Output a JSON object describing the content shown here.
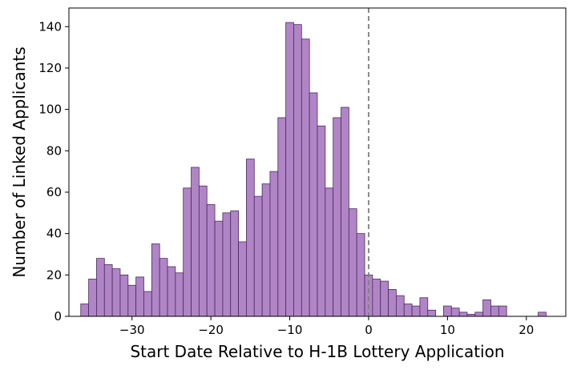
{
  "chart_data": {
    "type": "bar",
    "xlabel": "Start Date Relative to H-1B Lottery Application",
    "ylabel": "Number of Linked Applicants",
    "xlim": [
      -38,
      25
    ],
    "ylim": [
      0,
      149
    ],
    "bin_width": 1,
    "x": [
      -36,
      -35,
      -34,
      -33,
      -32,
      -31,
      -30,
      -29,
      -28,
      -27,
      -26,
      -25,
      -24,
      -23,
      -22,
      -21,
      -20,
      -19,
      -18,
      -17,
      -16,
      -15,
      -14,
      -13,
      -12,
      -11,
      -10,
      -9,
      -8,
      -7,
      -6,
      -5,
      -4,
      -3,
      -2,
      -1,
      0,
      1,
      2,
      3,
      4,
      5,
      6,
      7,
      8,
      9,
      10,
      11,
      12,
      13,
      14,
      15,
      16,
      17,
      18,
      19,
      20,
      21,
      22
    ],
    "values": [
      6,
      18,
      28,
      25,
      23,
      20,
      15,
      19,
      12,
      35,
      28,
      24,
      21,
      62,
      72,
      63,
      54,
      46,
      50,
      51,
      36,
      76,
      58,
      64,
      70,
      96,
      142,
      141,
      134,
      108,
      92,
      62,
      96,
      101,
      52,
      40,
      20,
      18,
      17,
      13,
      10,
      6,
      5,
      9,
      3,
      0,
      5,
      4,
      2,
      1,
      2,
      8,
      5,
      5,
      0,
      0,
      0,
      0,
      2
    ],
    "xticks": [
      -30,
      -20,
      -10,
      0,
      10,
      20
    ],
    "xtick_labels": [
      "−30",
      "−20",
      "−10",
      "0",
      "10",
      "20"
    ],
    "yticks": [
      0,
      20,
      40,
      60,
      80,
      100,
      120,
      140
    ],
    "ytick_labels": [
      "0",
      "20",
      "40",
      "60",
      "80",
      "100",
      "120",
      "140"
    ],
    "reference_line": {
      "x": 0,
      "style": "dashed",
      "color": "#808080"
    },
    "bar_color": "#b085c5",
    "bar_edge_color": "#4a2a5e",
    "grid": false
  }
}
